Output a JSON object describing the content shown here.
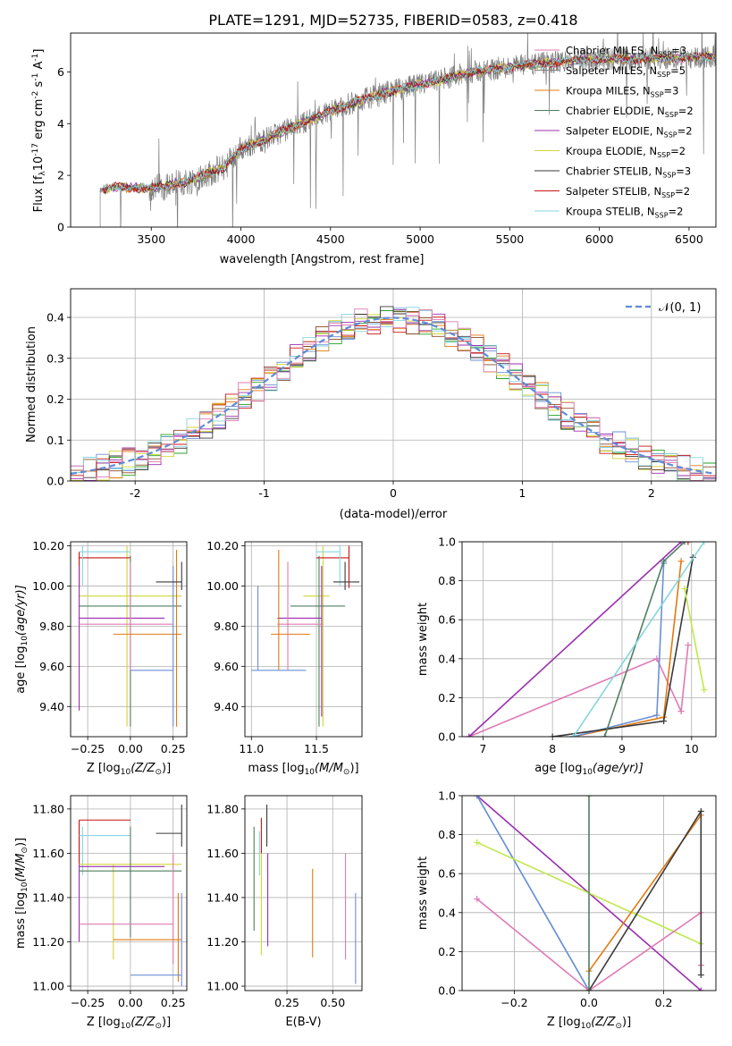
{
  "figure": {
    "title": "PLATE=1291, MJD=52735, FIBERID=0583, z=0.418"
  },
  "colors": {
    "series": [
      "#6b8fd6",
      "#e07a10",
      "#22a022",
      "#8a4a2a",
      "#9b2fb0",
      "#d4d435",
      "#3a3a3a",
      "#c81414",
      "#85d6e0",
      "#e07ab4",
      "#bfe84a",
      "#4f7f5f"
    ],
    "obs": "#808080",
    "grid": "#b0b0b0",
    "normal": "#5f8bd8"
  },
  "chart_data": [
    {
      "id": "spectrum",
      "type": "line",
      "title": "PLATE=1291, MJD=52735, FIBERID=0583, z=0.418",
      "xlabel": "wavelength [Angstrom, rest frame]",
      "ylabel": "Flux [f",
      "ylabel_sub": "λ",
      "ylabel_rest": "10",
      "ylabel_exp": "-17",
      "ylabel_unit1": " erg cm",
      "ylabel_exp2": "-2",
      "ylabel_unit2": " s",
      "ylabel_exp3": "-1",
      "ylabel_unit3": " A",
      "ylabel_exp4": "-1",
      "ylabel_end": "]",
      "xlim": [
        3050,
        6650
      ],
      "ylim": [
        0,
        7.5
      ],
      "xticks": [
        3500,
        4000,
        4500,
        5000,
        5500,
        6000,
        6500
      ],
      "yticks": [
        0,
        2,
        4,
        6
      ],
      "obs_start": 3215,
      "obs_end": 6650,
      "continuum_knots": [
        [
          3215,
          1.4
        ],
        [
          3300,
          1.55
        ],
        [
          3500,
          1.5
        ],
        [
          3700,
          1.75
        ],
        [
          3900,
          2.3
        ],
        [
          4000,
          3.0
        ],
        [
          4200,
          3.6
        ],
        [
          4500,
          4.5
        ],
        [
          4800,
          5.2
        ],
        [
          5000,
          5.5
        ],
        [
          5300,
          6.0
        ],
        [
          5500,
          6.2
        ],
        [
          5800,
          6.4
        ],
        [
          6000,
          6.5
        ],
        [
          6300,
          6.5
        ],
        [
          6650,
          6.6
        ]
      ],
      "legend": [
        {
          "label": "Chabrier MILES, N",
          "sub": "SSP",
          "tail": "=3",
          "color": "#e07ab4"
        },
        {
          "label": "Salpeter MILES, N",
          "sub": "SSP",
          "tail": "=5",
          "color": "#808080"
        },
        {
          "label": "Kroupa MILES, N",
          "sub": "SSP",
          "tail": "=3",
          "color": "#e07a10"
        },
        {
          "label": "Chabrier ELODIE, N",
          "sub": "SSP",
          "tail": "=2",
          "color": "#4f7f5f"
        },
        {
          "label": "Salpeter ELODIE, N",
          "sub": "SSP",
          "tail": "=2",
          "color": "#9b2fb0"
        },
        {
          "label": "Kroupa ELODIE, N",
          "sub": "SSP",
          "tail": "=2",
          "color": "#d4d435"
        },
        {
          "label": "Chabrier STELIB, N",
          "sub": "SSP",
          "tail": "=3",
          "color": "#3a3a3a"
        },
        {
          "label": "Salpeter STELIB, N",
          "sub": "SSP",
          "tail": "=2",
          "color": "#c81414"
        },
        {
          "label": "Kroupa STELIB, N",
          "sub": "SSP",
          "tail": "=2",
          "color": "#85d6e0"
        }
      ]
    },
    {
      "id": "residuals",
      "type": "histogram",
      "xlabel": "(data-model)/error",
      "ylabel": "Normed distribution",
      "xlim": [
        -2.5,
        2.5
      ],
      "ylim": [
        0,
        0.47
      ],
      "xticks": [
        -2,
        -1,
        0,
        1,
        2
      ],
      "yticks": [
        0.0,
        0.1,
        0.2,
        0.3,
        0.4
      ],
      "bin_width": 0.1,
      "legend": "𝒩(0, 1)"
    },
    {
      "id": "age-vs-Z",
      "type": "errorbar",
      "xlabel": "Z [log",
      "xlabel_sub": "10",
      "xlabel_rest": "(Z/Z",
      "xlabel_sub2": "⊙",
      "xlabel_end": ")]",
      "ylabel": "age  [log",
      "ylabel_sub": "10",
      "ylabel_rest": "(age/yr)]",
      "xlim": [
        -0.35,
        0.33
      ],
      "ylim": [
        9.25,
        10.22
      ],
      "xticks": [
        -0.25,
        0.0,
        0.25
      ],
      "xtick_labels": [
        "−0.25",
        "0.00",
        "0.25"
      ],
      "yticks": [
        9.4,
        9.6,
        9.8,
        10.0,
        10.2
      ],
      "points": [
        {
          "x": -0.02,
          "y": 9.95,
          "xlo": -0.3,
          "xhi": 0.3,
          "ylo": 9.3,
          "yhi": 10.2,
          "color": "#d4d435"
        },
        {
          "x": -0.3,
          "y": 10.14,
          "xlo": -0.3,
          "xhi": 0.0,
          "ylo": 9.99,
          "yhi": 10.17,
          "color": "#c81414"
        },
        {
          "x": -0.28,
          "y": 10.17,
          "xlo": -0.3,
          "xhi": 0.0,
          "ylo": 10.0,
          "yhi": 10.2,
          "color": "#85d6e0"
        },
        {
          "x": 0.0,
          "y": 9.9,
          "xlo": -0.3,
          "xhi": 0.3,
          "ylo": 9.3,
          "yhi": 10.15,
          "color": "#4f7f5f"
        },
        {
          "x": -0.3,
          "y": 9.84,
          "xlo": -0.3,
          "xhi": 0.2,
          "ylo": 9.38,
          "yhi": 10.1,
          "color": "#9b2fb0"
        },
        {
          "x": 0.0,
          "y": 9.81,
          "xlo": -0.3,
          "xhi": 0.25,
          "ylo": 9.58,
          "yhi": 10.12,
          "color": "#e07ab4"
        },
        {
          "x": 0.27,
          "y": 9.76,
          "xlo": -0.1,
          "xhi": 0.3,
          "ylo": 9.3,
          "yhi": 10.18,
          "color": "#e07a10"
        },
        {
          "x": 0.25,
          "y": 9.58,
          "xlo": 0.0,
          "xhi": 0.25,
          "ylo": 9.3,
          "yhi": 10.1,
          "color": "#6b8fd6"
        },
        {
          "x": 0.3,
          "y": 10.02,
          "xlo": 0.15,
          "xhi": 0.3,
          "ylo": 9.98,
          "yhi": 10.12,
          "color": "#3a3a3a"
        }
      ]
    },
    {
      "id": "age-vs-mass",
      "type": "errorbar",
      "xlabel": "mass [log",
      "xlabel_sub": "10",
      "xlabel_rest": "(M/M",
      "xlabel_sub2": "⊙",
      "xlabel_end": ")]",
      "xlim": [
        10.95,
        11.85
      ],
      "ylim": [
        9.25,
        10.22
      ],
      "xticks": [
        11.0,
        11.5
      ],
      "xtick_labels": [
        "11.0",
        "11.5"
      ],
      "yticks": [
        9.4,
        9.6,
        9.8,
        10.0,
        10.2
      ],
      "points": [
        {
          "x": 11.55,
          "y": 9.95,
          "xlo": 11.4,
          "xhi": 11.6,
          "ylo": 9.3,
          "yhi": 10.2,
          "color": "#d4d435"
        },
        {
          "x": 11.75,
          "y": 10.14,
          "xlo": 11.5,
          "xhi": 11.75,
          "ylo": 9.99,
          "yhi": 10.2,
          "color": "#c81414"
        },
        {
          "x": 11.68,
          "y": 10.17,
          "xlo": 11.5,
          "xhi": 11.68,
          "ylo": 10.0,
          "yhi": 10.2,
          "color": "#85d6e0"
        },
        {
          "x": 11.52,
          "y": 9.9,
          "xlo": 11.3,
          "xhi": 11.72,
          "ylo": 9.3,
          "yhi": 10.15,
          "color": "#4f7f5f"
        },
        {
          "x": 11.54,
          "y": 9.84,
          "xlo": 11.2,
          "xhi": 11.54,
          "ylo": 9.35,
          "yhi": 10.1,
          "color": "#9b2fb0"
        },
        {
          "x": 11.28,
          "y": 9.81,
          "xlo": 11.2,
          "xhi": 11.55,
          "ylo": 9.58,
          "yhi": 10.12,
          "color": "#e07ab4"
        },
        {
          "x": 11.21,
          "y": 9.76,
          "xlo": 11.15,
          "xhi": 11.45,
          "ylo": 9.58,
          "yhi": 10.18,
          "color": "#e07a10"
        },
        {
          "x": 11.05,
          "y": 9.58,
          "xlo": 11.0,
          "xhi": 11.42,
          "ylo": 9.58,
          "yhi": 10.0,
          "color": "#6b8fd6"
        },
        {
          "x": 11.72,
          "y": 10.02,
          "xlo": 11.63,
          "xhi": 11.83,
          "ylo": 9.98,
          "yhi": 10.12,
          "color": "#3a3a3a"
        }
      ]
    },
    {
      "id": "massweight-vs-age",
      "type": "line",
      "xlabel": "age  [log",
      "xlabel_sub": "10",
      "xlabel_rest": "(age/yr)]",
      "ylabel": "mass weight",
      "xlim": [
        6.7,
        10.35
      ],
      "ylim": [
        0,
        1
      ],
      "xticks": [
        7,
        8,
        9,
        10
      ],
      "yticks": [
        0.0,
        0.2,
        0.4,
        0.6,
        0.8,
        1.0
      ],
      "series": [
        {
          "color": "#e07ab4",
          "points": [
            [
              6.8,
              0.0
            ],
            [
              9.5,
              0.4
            ],
            [
              9.85,
              0.13
            ],
            [
              9.95,
              0.47
            ]
          ]
        },
        {
          "color": "#9b2fb0",
          "points": [
            [
              6.8,
              0.0
            ],
            [
              9.85,
              1.0
            ]
          ]
        },
        {
          "color": "#e07a10",
          "points": [
            [
              8.3,
              0.0
            ],
            [
              9.6,
              0.1
            ],
            [
              9.85,
              0.9
            ]
          ]
        },
        {
          "color": "#6b8fd6",
          "points": [
            [
              8.3,
              0.0
            ],
            [
              9.5,
              0.11
            ],
            [
              9.6,
              0.89
            ]
          ]
        },
        {
          "color": "#3a3a3a",
          "points": [
            [
              8.0,
              0.0
            ],
            [
              9.6,
              0.08
            ],
            [
              10.02,
              0.92
            ]
          ]
        },
        {
          "color": "#4f7f5f",
          "points": [
            [
              8.75,
              0.0
            ],
            [
              9.6,
              0.9
            ],
            [
              9.9,
              1.0
            ]
          ]
        },
        {
          "color": "#85d6e0",
          "points": [
            [
              8.3,
              0.0
            ],
            [
              10.18,
              1.0
            ]
          ]
        },
        {
          "color": "#bfe84a",
          "points": [
            [
              9.9,
              0.76
            ],
            [
              10.18,
              0.24
            ]
          ]
        },
        {
          "color": "#c81414",
          "points": [
            [
              9.95,
              1.0
            ]
          ]
        }
      ]
    },
    {
      "id": "mass-vs-Z",
      "type": "errorbar",
      "xlabel": "Z [log",
      "xlabel_sub": "10",
      "xlabel_rest": "(Z/Z",
      "xlabel_sub2": "⊙",
      "xlabel_end": ")]",
      "ylabel": "mass [log",
      "ylabel_sub": "10",
      "ylabel_rest": "(M/M",
      "ylabel_sub2": "⊙",
      "ylabel_end": ")]",
      "xlim": [
        -0.35,
        0.33
      ],
      "ylim": [
        10.98,
        11.86
      ],
      "xticks": [
        -0.25,
        0.0,
        0.25
      ],
      "xtick_labels": [
        "−0.25",
        "0.00",
        "0.25"
      ],
      "yticks": [
        11.0,
        11.2,
        11.4,
        11.6,
        11.8
      ],
      "points": [
        {
          "x": -0.3,
          "y": 11.75,
          "xlo": -0.3,
          "xhi": 0.0,
          "ylo": 11.55,
          "yhi": 11.75,
          "color": "#c81414"
        },
        {
          "x": 0.3,
          "y": 11.69,
          "xlo": 0.15,
          "xhi": 0.3,
          "ylo": 11.63,
          "yhi": 11.82,
          "color": "#3a3a3a"
        },
        {
          "x": -0.28,
          "y": 11.68,
          "xlo": -0.3,
          "xhi": 0.0,
          "ylo": 11.5,
          "yhi": 11.72,
          "color": "#85d6e0"
        },
        {
          "x": -0.1,
          "y": 11.55,
          "xlo": -0.3,
          "xhi": 0.3,
          "ylo": 11.12,
          "yhi": 11.55,
          "color": "#d4d435"
        },
        {
          "x": -0.3,
          "y": 11.54,
          "xlo": -0.3,
          "xhi": 0.2,
          "ylo": 11.2,
          "yhi": 11.55,
          "color": "#9b2fb0"
        },
        {
          "x": 0.0,
          "y": 11.52,
          "xlo": -0.3,
          "xhi": 0.3,
          "ylo": 11.22,
          "yhi": 11.72,
          "color": "#4f7f5f"
        },
        {
          "x": 0.25,
          "y": 11.28,
          "xlo": -0.3,
          "xhi": 0.25,
          "ylo": 11.1,
          "yhi": 11.6,
          "color": "#e07ab4"
        },
        {
          "x": 0.28,
          "y": 11.21,
          "xlo": -0.1,
          "xhi": 0.3,
          "ylo": 11.02,
          "yhi": 11.42,
          "color": "#e07a10"
        },
        {
          "x": 0.3,
          "y": 11.05,
          "xlo": 0.0,
          "xhi": 0.3,
          "ylo": 11.0,
          "yhi": 11.42,
          "color": "#6b8fd6"
        }
      ]
    },
    {
      "id": "mass-vs-EBV",
      "type": "errorbar",
      "xlabel": "E(B-V)",
      "xlim": [
        0.02,
        0.66
      ],
      "ylim": [
        10.98,
        11.86
      ],
      "xticks": [
        0.25,
        0.5
      ],
      "xtick_labels": [
        "0.25",
        "0.50"
      ],
      "yticks": [
        11.0,
        11.2,
        11.4,
        11.6,
        11.8
      ],
      "points": [
        {
          "x": 0.07,
          "y": 11.48,
          "ylo": 11.25,
          "yhi": 11.72,
          "color": "#4f7f5f"
        },
        {
          "x": 0.1,
          "y": 11.6,
          "ylo": 11.5,
          "yhi": 11.7,
          "color": "#85d6e0"
        },
        {
          "x": 0.11,
          "y": 11.4,
          "ylo": 11.14,
          "yhi": 11.62,
          "color": "#d4d435"
        },
        {
          "x": 0.11,
          "y": 11.68,
          "ylo": 11.6,
          "yhi": 11.76,
          "color": "#c81414"
        },
        {
          "x": 0.14,
          "y": 11.75,
          "ylo": 11.63,
          "yhi": 11.82,
          "color": "#3a3a3a"
        },
        {
          "x": 0.145,
          "y": 11.39,
          "ylo": 11.18,
          "yhi": 11.6,
          "color": "#9b2fb0"
        },
        {
          "x": 0.39,
          "y": 11.33,
          "ylo": 11.13,
          "yhi": 11.53,
          "color": "#e07a10"
        },
        {
          "x": 0.57,
          "y": 11.36,
          "ylo": 11.12,
          "yhi": 11.6,
          "color": "#e07ab4"
        },
        {
          "x": 0.625,
          "y": 11.2,
          "ylo": 11.01,
          "yhi": 11.42,
          "color": "#6b8fd6"
        }
      ]
    },
    {
      "id": "massweight-vs-Z",
      "type": "line",
      "xlabel": "Z [log",
      "xlabel_sub": "10",
      "xlabel_rest": "(Z/Z",
      "xlabel_sub2": "⊙",
      "xlabel_end": ")]",
      "ylabel": "mass weight",
      "xlim": [
        -0.34,
        0.34
      ],
      "ylim": [
        0,
        1
      ],
      "xticks": [
        -0.2,
        0.0,
        0.2
      ],
      "xtick_labels": [
        "−0.2",
        "0.0",
        "0.2"
      ],
      "yticks": [
        0.0,
        0.2,
        0.4,
        0.6,
        0.8,
        1.0
      ],
      "series": [
        {
          "color": "#9b2fb0",
          "points": [
            [
              -0.3,
              1.0
            ],
            [
              0.3,
              0.0
            ]
          ]
        },
        {
          "color": "#85d6e0",
          "points": [
            [
              -0.3,
              1.0
            ],
            [
              0.0,
              0.0
            ]
          ]
        },
        {
          "color": "#6b8fd6",
          "points": [
            [
              -0.3,
              1.0
            ],
            [
              0.0,
              0.0
            ]
          ]
        },
        {
          "color": "#bfe84a",
          "points": [
            [
              -0.3,
              0.76
            ],
            [
              0.3,
              0.24
            ]
          ]
        },
        {
          "color": "#e07ab4",
          "points": [
            [
              -0.3,
              0.47
            ],
            [
              0.0,
              0.0
            ],
            [
              0.3,
              0.4
            ],
            [
              0.3,
              0.13
            ]
          ]
        },
        {
          "color": "#e07a10",
          "points": [
            [
              0.0,
              0.1
            ],
            [
              0.3,
              0.9
            ]
          ]
        },
        {
          "color": "#3a3a3a",
          "points": [
            [
              0.0,
              0.0
            ],
            [
              0.3,
              0.92
            ],
            [
              0.3,
              0.08
            ]
          ]
        },
        {
          "color": "#4f7f5f",
          "points": [
            [
              0.0,
              1.0
            ],
            [
              0.0,
              0.0
            ]
          ]
        }
      ]
    }
  ]
}
